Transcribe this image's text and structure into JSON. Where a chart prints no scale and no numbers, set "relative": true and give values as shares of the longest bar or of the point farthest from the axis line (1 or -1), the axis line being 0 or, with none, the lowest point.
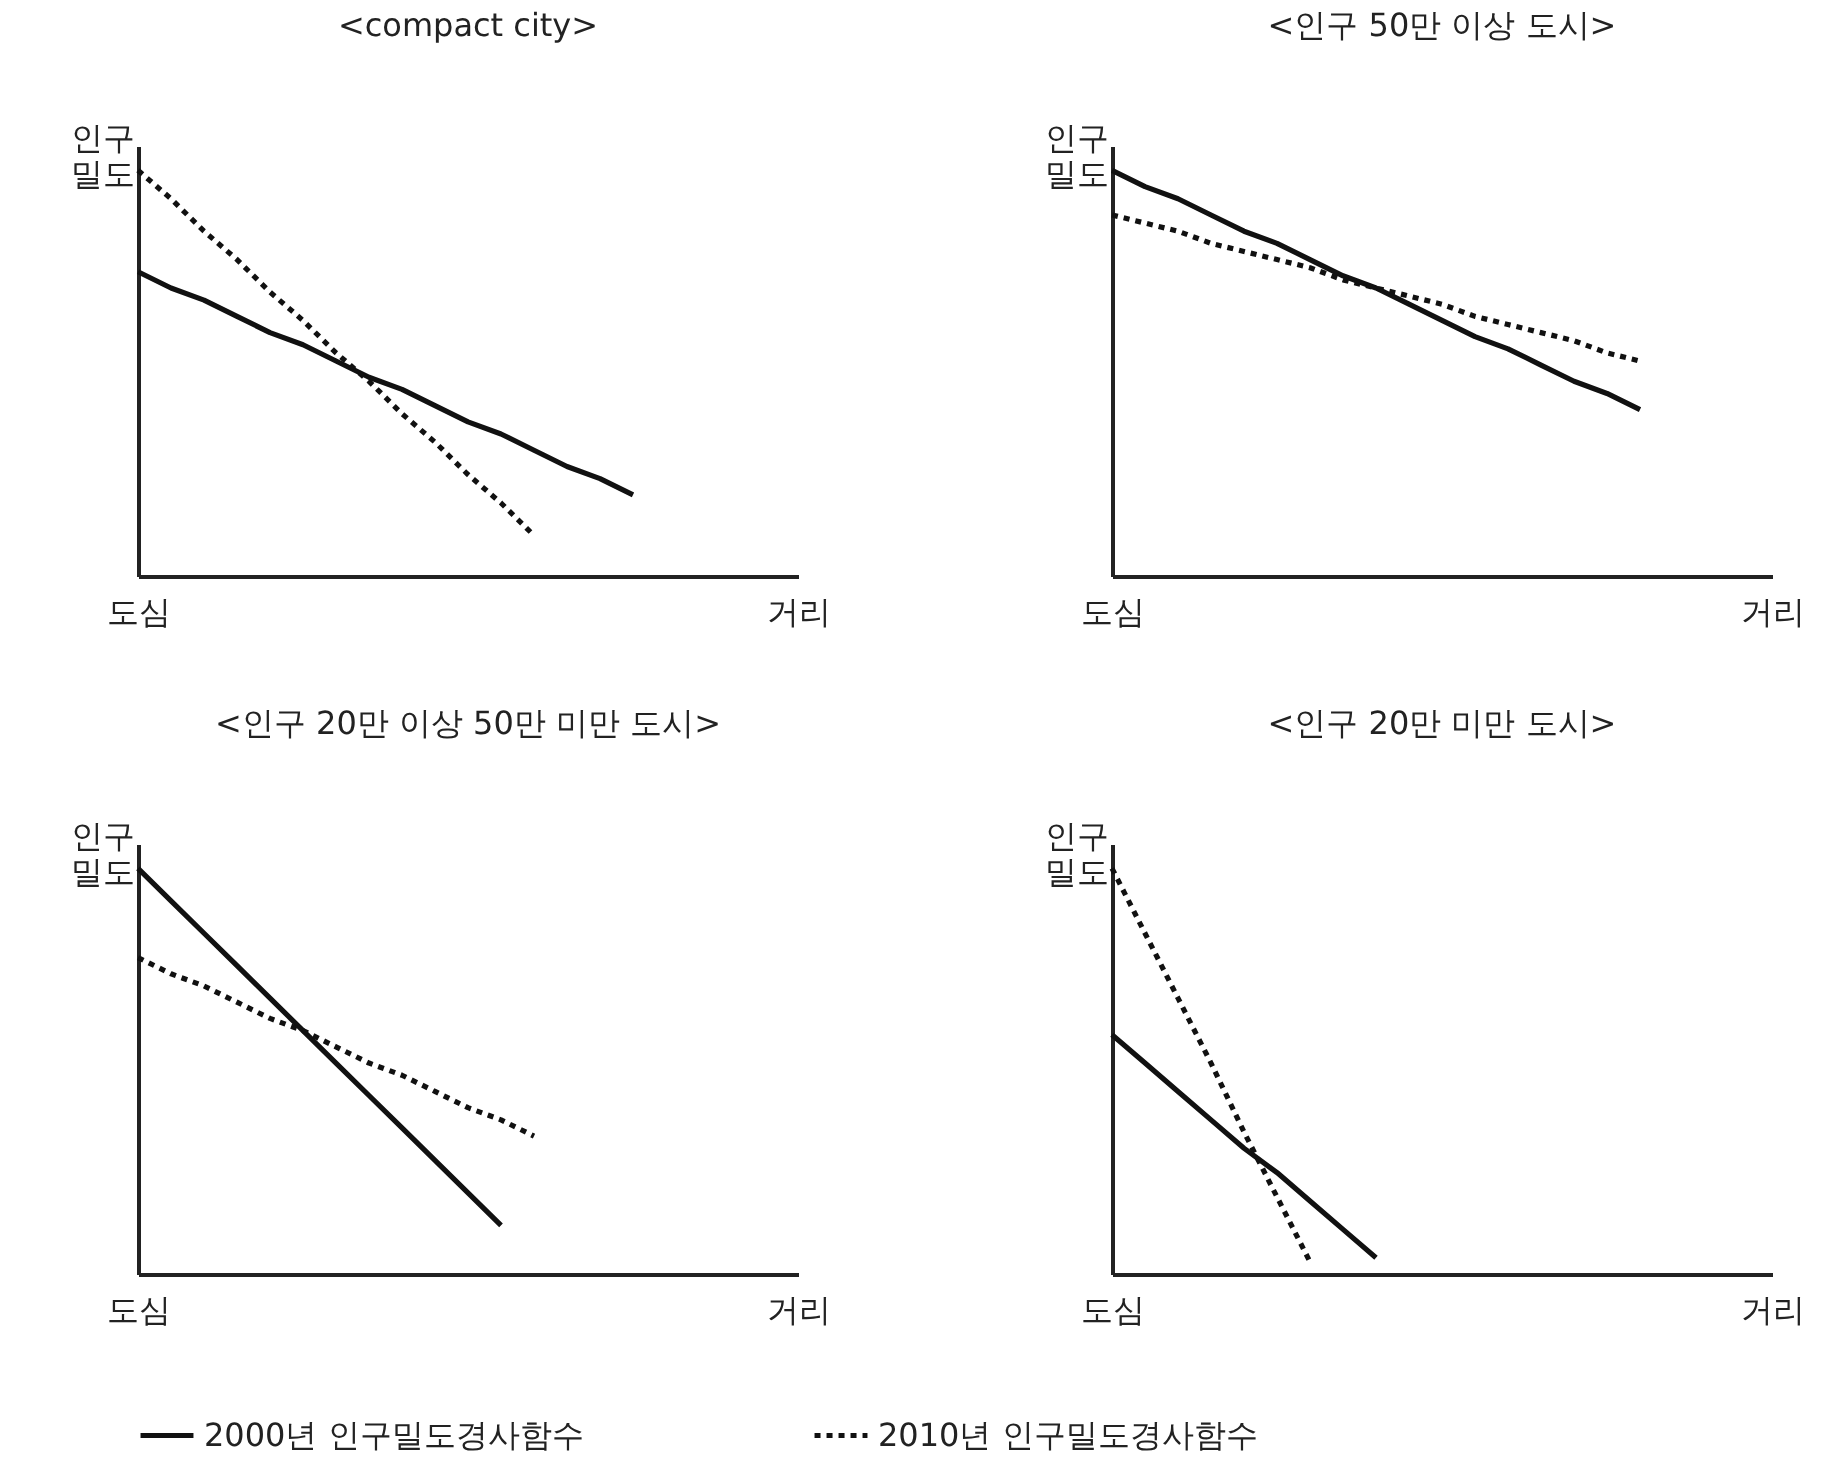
{
  "chart_data": [
    {
      "type": "line",
      "title": "<compact city>",
      "ylabel": "인구\n밀도",
      "categories": [
        "도심",
        null,
        null,
        null,
        null,
        null,
        null,
        null,
        null,
        null,
        null,
        null,
        null,
        null,
        null,
        null,
        null,
        null,
        null,
        null,
        "거리"
      ],
      "relative": true,
      "marker": "none",
      "series": [
        {
          "color": "#111111",
          "line_style": "solid",
          "values": [
            0.75,
            0.71,
            0.68,
            0.64,
            0.6,
            0.57,
            0.53,
            0.49,
            0.46,
            0.42,
            0.38,
            0.35,
            0.31,
            0.27,
            0.24,
            0.2,
            null,
            null,
            null,
            null,
            null
          ]
        },
        {
          "color": "#111111",
          "line_style": "dotted",
          "values": [
            1,
            0.93,
            0.85,
            0.78,
            0.7,
            0.63,
            0.55,
            0.48,
            0.4,
            0.33,
            0.25,
            0.18,
            0.1,
            null,
            null,
            null,
            null,
            null,
            null,
            null,
            null
          ]
        }
      ]
    },
    {
      "type": "line",
      "title": "<인구 50만 이상 도시>",
      "ylabel": "인구\n밀도",
      "categories": [
        "도심",
        null,
        null,
        null,
        null,
        null,
        null,
        null,
        null,
        null,
        null,
        null,
        null,
        null,
        null,
        null,
        null,
        null,
        null,
        null,
        "거리"
      ],
      "relative": true,
      "marker": "none",
      "series": [
        {
          "color": "#111111",
          "line_style": "solid",
          "values": [
            1,
            0.96,
            0.93,
            0.89,
            0.85,
            0.82,
            0.78,
            0.74,
            0.71,
            0.67,
            0.63,
            0.59,
            0.56,
            0.52,
            0.48,
            0.45,
            0.41,
            null,
            null,
            null,
            null
          ]
        },
        {
          "color": "#111111",
          "line_style": "dotted",
          "values": [
            0.89,
            0.87,
            0.85,
            0.82,
            0.8,
            0.78,
            0.76,
            0.73,
            0.71,
            0.69,
            0.67,
            0.64,
            0.62,
            0.6,
            0.58,
            0.55,
            0.53,
            null,
            null,
            null,
            null
          ]
        }
      ]
    },
    {
      "type": "line",
      "title": "<인구 20만 이상 50만 미만 도시>",
      "ylabel": "인구\n밀도",
      "categories": [
        "도심",
        null,
        null,
        null,
        null,
        null,
        null,
        null,
        null,
        null,
        null,
        null,
        null,
        null,
        null,
        null,
        null,
        null,
        null,
        null,
        "거리"
      ],
      "relative": true,
      "marker": "none",
      "legend": "bottom",
      "series": [
        {
          "name": "2000년 인구밀도경사함수",
          "color": "#111111",
          "line_style": "solid",
          "values": [
            1,
            0.92,
            0.84,
            0.76,
            0.68,
            0.6,
            0.52,
            0.44,
            0.36,
            0.28,
            0.2,
            0.12,
            null,
            null,
            null,
            null,
            null,
            null,
            null,
            null,
            null
          ]
        },
        {
          "name": "2010년 인구밀도경사함수",
          "color": "#111111",
          "line_style": "dotted",
          "values": [
            0.78,
            0.74,
            0.71,
            0.67,
            0.63,
            0.6,
            0.56,
            0.52,
            0.49,
            0.45,
            0.41,
            0.38,
            0.34,
            null,
            null,
            null,
            null,
            null,
            null,
            null,
            null
          ]
        }
      ]
    },
    {
      "type": "line",
      "title": "<인구 20만 미만 도시>",
      "ylabel": "인구\n밀도",
      "categories": [
        "도심",
        null,
        null,
        null,
        null,
        null,
        null,
        null,
        null,
        null,
        null,
        null,
        null,
        null,
        null,
        null,
        null,
        null,
        null,
        null,
        "거리"
      ],
      "relative": true,
      "marker": "none",
      "series": [
        {
          "color": "#111111",
          "line_style": "solid",
          "values": [
            0.59,
            0.52,
            0.45,
            0.38,
            0.31,
            0.25,
            0.18,
            0.11,
            0.04,
            null,
            null,
            null,
            null,
            null,
            null,
            null,
            null,
            null,
            null,
            null,
            null
          ]
        },
        {
          "color": "#111111",
          "line_style": "dotted",
          "values": [
            1,
            0.84,
            0.68,
            0.52,
            0.35,
            0.19,
            0.03,
            null,
            null,
            null,
            null,
            null,
            null,
            null,
            null,
            null,
            null,
            null,
            null,
            null,
            null
          ]
        }
      ]
    }
  ]
}
